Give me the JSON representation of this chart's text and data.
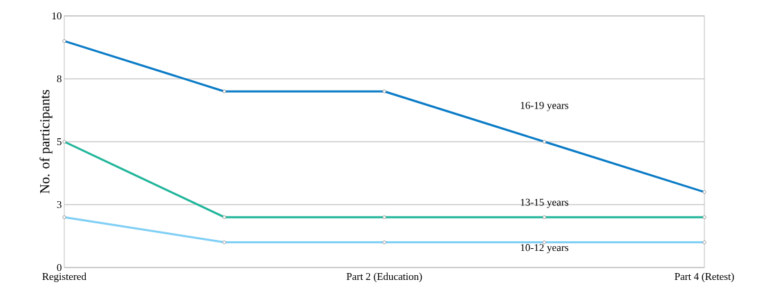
{
  "chart_data": {
    "type": "line",
    "ylabel": "No. of participants",
    "categories": [
      "Registered",
      null,
      "Part 2 (Education)",
      null,
      "Part 4 (Retest)"
    ],
    "series": [
      {
        "name": "16-19 years",
        "color": "#0a7bc6",
        "values": [
          9,
          7,
          7,
          5,
          3
        ]
      },
      {
        "name": "13-15 years",
        "color": "#1fb59a",
        "values": [
          5,
          2,
          2,
          2,
          2
        ]
      },
      {
        "name": "10-12 years",
        "color": "#80cff5",
        "values": [
          2,
          1,
          1,
          1,
          1
        ]
      }
    ],
    "ylim": [
      0,
      10
    ],
    "yticks": [
      0,
      {
        "value": 2.5,
        "label": "3"
      },
      5,
      {
        "value": 7.5,
        "label": "8"
      },
      10
    ],
    "grid": "y",
    "legend": false,
    "marker": "circle",
    "line_style": "solid"
  }
}
